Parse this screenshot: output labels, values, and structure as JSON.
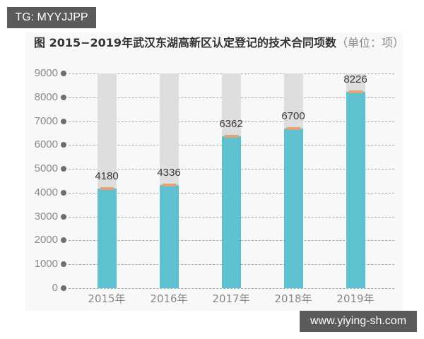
{
  "watermark_top": "TG: MYYJJPP",
  "watermark_bottom": "www.yiying-sh.com",
  "title": {
    "main": "图  2015−2019年武汉东湖高新区认定登记的技术合同项数",
    "unit": "（单位：项）"
  },
  "colors": {
    "bar": "#5fc1cf",
    "bar_background": "#dcdedf",
    "bar_cap": "#e3a374",
    "grid": "#a9a9a9",
    "axis_dot": "#6e6e6e"
  },
  "chart_data": {
    "type": "bar",
    "title": "图 2015−2019年武汉东湖高新区认定登记的技术合同项数（单位：项）",
    "xlabel": "",
    "ylabel": "",
    "categories": [
      "2015年",
      "2016年",
      "2017年",
      "2018年",
      "2019年"
    ],
    "values": [
      4180,
      4336,
      6362,
      6700,
      8226
    ],
    "ylim": [
      0,
      9000
    ],
    "yticks": [
      0,
      1000,
      2000,
      3000,
      4000,
      5000,
      6000,
      7000,
      8000,
      9000
    ],
    "ytick_labels": [
      "0",
      "1000",
      "2000",
      "3000",
      "4000",
      "5000",
      "6000",
      "7000",
      "8000",
      "9000"
    ],
    "data_labels": [
      "4180",
      "4336",
      "6362",
      "6700",
      "8226"
    ],
    "grid": true,
    "grid_style": "dashed",
    "legend": null,
    "bar_background_full_scale": 9000
  }
}
